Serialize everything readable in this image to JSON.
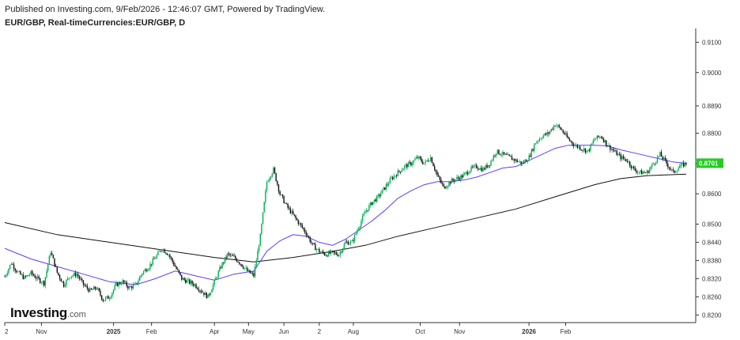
{
  "header": {
    "published": "Published on Investing.com, 9/Feb/2026 - 12:46:07 GMT, Powered by TradingView.",
    "symbol": "EUR/GBP, Real-timeCurrencies:EUR/GBP, D"
  },
  "logo": {
    "main": "Investing",
    "domain": ".com"
  },
  "colors": {
    "up": "#00b050",
    "down": "#111111",
    "ma_short": "#5a3cff",
    "ma_long": "#111111",
    "last_price_bg": "#22cc22",
    "axis": "#333333"
  },
  "chart_data": {
    "type": "candlestick",
    "symbol": "EUR/GBP",
    "timeframe": "D",
    "y_ticks": [
      "0.9100",
      "0.9000",
      "0.8890",
      "0.8800",
      "0.8700",
      "0.8600",
      "0.8500",
      "0.8440",
      "0.8380",
      "0.8320",
      "0.8260",
      "0.8200"
    ],
    "x_ticks": [
      {
        "label": "2",
        "bold": false
      },
      {
        "label": "Nov",
        "bold": false
      },
      {
        "label": "2025",
        "bold": true
      },
      {
        "label": "Feb",
        "bold": false
      },
      {
        "label": "Apr",
        "bold": false
      },
      {
        "label": "May",
        "bold": false
      },
      {
        "label": "Jun",
        "bold": false
      },
      {
        "label": "2",
        "bold": false
      },
      {
        "label": "Aug",
        "bold": false
      },
      {
        "label": "Oct",
        "bold": false
      },
      {
        "label": "Nov",
        "bold": false
      },
      {
        "label": "2026",
        "bold": true
      },
      {
        "label": "Feb",
        "bold": false
      }
    ],
    "last_price": "0.8701",
    "close_series": [
      [
        0,
        0.8327
      ],
      [
        5,
        0.8372
      ],
      [
        10,
        0.834
      ],
      [
        15,
        0.8322
      ],
      [
        20,
        0.8338
      ],
      [
        25,
        0.832
      ],
      [
        30,
        0.8305
      ],
      [
        35,
        0.841
      ],
      [
        40,
        0.834
      ],
      [
        45,
        0.83
      ],
      [
        50,
        0.833
      ],
      [
        55,
        0.8335
      ],
      [
        60,
        0.83
      ],
      [
        65,
        0.828
      ],
      [
        70,
        0.829
      ],
      [
        75,
        0.825
      ],
      [
        80,
        0.826
      ],
      [
        85,
        0.83
      ],
      [
        90,
        0.831
      ],
      [
        95,
        0.829
      ],
      [
        100,
        0.83
      ],
      [
        105,
        0.834
      ],
      [
        110,
        0.836
      ],
      [
        115,
        0.839
      ],
      [
        120,
        0.842
      ],
      [
        125,
        0.84
      ],
      [
        130,
        0.836
      ],
      [
        135,
        0.832
      ],
      [
        140,
        0.831
      ],
      [
        145,
        0.83
      ],
      [
        150,
        0.828
      ],
      [
        155,
        0.826
      ],
      [
        160,
        0.831
      ],
      [
        165,
        0.836
      ],
      [
        170,
        0.84
      ],
      [
        175,
        0.839
      ],
      [
        180,
        0.837
      ],
      [
        185,
        0.8345
      ],
      [
        190,
        0.833
      ],
      [
        195,
        0.846
      ],
      [
        200,
        0.864
      ],
      [
        205,
        0.868
      ],
      [
        210,
        0.86
      ],
      [
        215,
        0.856
      ],
      [
        220,
        0.853
      ],
      [
        225,
        0.85
      ],
      [
        230,
        0.847
      ],
      [
        235,
        0.843
      ],
      [
        240,
        0.841
      ],
      [
        245,
        0.84
      ],
      [
        250,
        0.8405
      ],
      [
        255,
        0.84
      ],
      [
        260,
        0.844
      ],
      [
        265,
        0.844
      ],
      [
        270,
        0.849
      ],
      [
        275,
        0.854
      ],
      [
        280,
        0.857
      ],
      [
        285,
        0.859
      ],
      [
        290,
        0.862
      ],
      [
        295,
        0.865
      ],
      [
        300,
        0.867
      ],
      [
        305,
        0.869
      ],
      [
        310,
        0.87
      ],
      [
        315,
        0.872
      ],
      [
        320,
        0.87
      ],
      [
        325,
        0.872
      ],
      [
        330,
        0.866
      ],
      [
        335,
        0.862
      ],
      [
        340,
        0.864
      ],
      [
        345,
        0.865
      ],
      [
        350,
        0.866
      ],
      [
        355,
        0.868
      ],
      [
        360,
        0.869
      ],
      [
        365,
        0.868
      ],
      [
        370,
        0.87
      ],
      [
        375,
        0.874
      ],
      [
        380,
        0.873
      ],
      [
        385,
        0.872
      ],
      [
        390,
        0.871
      ],
      [
        395,
        0.87
      ],
      [
        400,
        0.872
      ],
      [
        405,
        0.877
      ],
      [
        410,
        0.879
      ],
      [
        415,
        0.88
      ],
      [
        420,
        0.883
      ],
      [
        425,
        0.881
      ],
      [
        430,
        0.878
      ],
      [
        435,
        0.876
      ],
      [
        440,
        0.875
      ],
      [
        445,
        0.874
      ],
      [
        450,
        0.878
      ],
      [
        455,
        0.879
      ],
      [
        460,
        0.876
      ],
      [
        465,
        0.874
      ],
      [
        470,
        0.872
      ],
      [
        475,
        0.871
      ],
      [
        480,
        0.868
      ],
      [
        485,
        0.867
      ],
      [
        490,
        0.867
      ],
      [
        495,
        0.87
      ],
      [
        500,
        0.873
      ],
      [
        505,
        0.87
      ],
      [
        510,
        0.867
      ],
      [
        515,
        0.869
      ],
      [
        520,
        0.8701
      ]
    ],
    "ma_short": [
      [
        0,
        0.842
      ],
      [
        20,
        0.8385
      ],
      [
        40,
        0.836
      ],
      [
        60,
        0.8335
      ],
      [
        80,
        0.831
      ],
      [
        100,
        0.83
      ],
      [
        115,
        0.832
      ],
      [
        130,
        0.8345
      ],
      [
        145,
        0.833
      ],
      [
        160,
        0.8315
      ],
      [
        175,
        0.8335
      ],
      [
        190,
        0.8345
      ],
      [
        200,
        0.841
      ],
      [
        210,
        0.8445
      ],
      [
        220,
        0.8465
      ],
      [
        230,
        0.846
      ],
      [
        240,
        0.844
      ],
      [
        250,
        0.843
      ],
      [
        260,
        0.845
      ],
      [
        270,
        0.848
      ],
      [
        280,
        0.851
      ],
      [
        290,
        0.8545
      ],
      [
        300,
        0.8585
      ],
      [
        310,
        0.861
      ],
      [
        320,
        0.863
      ],
      [
        330,
        0.864
      ],
      [
        340,
        0.864
      ],
      [
        350,
        0.8645
      ],
      [
        360,
        0.8655
      ],
      [
        370,
        0.867
      ],
      [
        380,
        0.8685
      ],
      [
        390,
        0.869
      ],
      [
        400,
        0.871
      ],
      [
        410,
        0.873
      ],
      [
        420,
        0.875
      ],
      [
        430,
        0.876
      ],
      [
        440,
        0.876
      ],
      [
        450,
        0.876
      ],
      [
        460,
        0.8758
      ],
      [
        470,
        0.8745
      ],
      [
        480,
        0.8735
      ],
      [
        490,
        0.8725
      ],
      [
        500,
        0.8715
      ],
      [
        510,
        0.8705
      ],
      [
        520,
        0.87
      ]
    ],
    "ma_long": [
      [
        0,
        0.8505
      ],
      [
        40,
        0.8465
      ],
      [
        80,
        0.844
      ],
      [
        120,
        0.8415
      ],
      [
        160,
        0.839
      ],
      [
        190,
        0.8375
      ],
      [
        220,
        0.839
      ],
      [
        250,
        0.841
      ],
      [
        275,
        0.843
      ],
      [
        300,
        0.846
      ],
      [
        330,
        0.849
      ],
      [
        360,
        0.852
      ],
      [
        390,
        0.855
      ],
      [
        420,
        0.859
      ],
      [
        450,
        0.863
      ],
      [
        470,
        0.865
      ],
      [
        490,
        0.866
      ],
      [
        520,
        0.8665
      ]
    ],
    "x_range": [
      0,
      520
    ],
    "ylim": [
      0.8175,
      0.9135
    ]
  }
}
